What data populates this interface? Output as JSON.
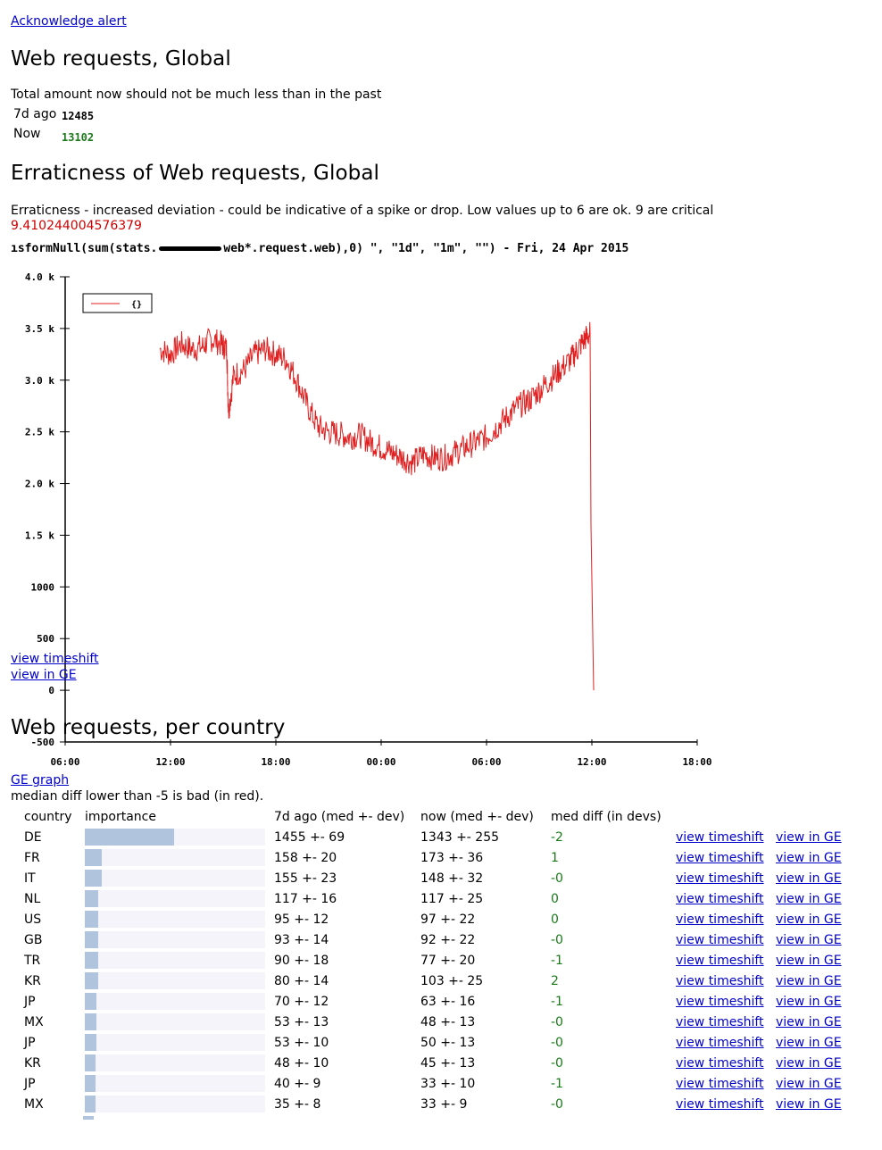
{
  "top_link": "Acknowledge alert",
  "section1": {
    "title": "Web requests, Global",
    "description": "Total amount now should not be much less than in the past",
    "rows": [
      {
        "label": "7d ago",
        "value": "12485"
      },
      {
        "label": "Now",
        "value": "13102"
      }
    ]
  },
  "section2": {
    "title": "Erraticness of Web requests, Global",
    "description": "Erraticness - increased deviation - could be indicative of a spike or drop. Low values up to 6 are ok. 9 are critical",
    "value": "9.410244004576379",
    "query_left": "ısformNull(sum(stats.",
    "query_right": "web*.request.web),0) \", \"1d\", \"1m\", \"\") - Fri, 24 Apr 2015",
    "links": [
      "view timeshift",
      "view in GE"
    ]
  },
  "chart_data": {
    "type": "line",
    "title": "",
    "xlabel": "",
    "ylabel": "",
    "legend": "{}",
    "legend_position": "top-left",
    "line_color": "#e02020",
    "ylim": [
      -500,
      4000
    ],
    "yticks": [
      {
        "value": 4000,
        "label": "4.0 k"
      },
      {
        "value": 3500,
        "label": "3.5 k"
      },
      {
        "value": 3000,
        "label": "3.0 k"
      },
      {
        "value": 2500,
        "label": "2.5 k"
      },
      {
        "value": 2000,
        "label": "2.0 k"
      },
      {
        "value": 1500,
        "label": "1.5 k"
      },
      {
        "value": 1000,
        "label": "1000"
      },
      {
        "value": 500,
        "label": "500"
      },
      {
        "value": 0,
        "label": "0"
      },
      {
        "value": -500,
        "label": "-500"
      }
    ],
    "xlim": [
      6,
      36
    ],
    "xticks": [
      {
        "value": 6,
        "label": "06:00"
      },
      {
        "value": 12,
        "label": "12:00"
      },
      {
        "value": 18,
        "label": "18:00"
      },
      {
        "value": 24,
        "label": "00:00"
      },
      {
        "value": 30,
        "label": "06:00"
      },
      {
        "value": 36,
        "label": "12:00"
      },
      {
        "value": 42,
        "label": "18:00"
      }
    ],
    "series": [
      {
        "x": [
          11.4,
          12.0,
          12.6,
          13.2,
          13.8,
          14.3,
          14.9,
          15.2,
          15.3,
          15.6,
          16.2,
          16.8,
          17.4,
          18.0,
          18.6,
          19.2,
          19.8,
          20.4,
          21.0,
          21.6,
          22.2,
          22.8,
          23.4,
          24.0,
          24.6,
          25.2,
          25.8,
          26.4,
          27.0,
          27.6,
          28.2,
          28.8,
          29.4,
          30.0,
          30.6,
          31.2,
          31.8,
          32.4,
          33.0,
          33.6,
          34.2,
          34.8,
          35.2,
          35.6,
          35.9,
          36.1
        ],
        "y": [
          3300,
          3250,
          3350,
          3300,
          3320,
          3400,
          3350,
          3300,
          2700,
          3050,
          3100,
          3250,
          3300,
          3250,
          3200,
          3000,
          2750,
          2550,
          2500,
          2480,
          2450,
          2470,
          2400,
          2350,
          2300,
          2250,
          2200,
          2280,
          2250,
          2250,
          2300,
          2350,
          2400,
          2450,
          2550,
          2650,
          2750,
          2800,
          2900,
          3000,
          3100,
          3200,
          3300,
          3400,
          3450,
          0
        ]
      }
    ]
  },
  "section3": {
    "title": "Web requests, per country",
    "link": "GE graph",
    "note": "median diff lower than -5 is bad (in red).",
    "headers": [
      "country",
      "importance",
      "7d ago (med +- dev)",
      "now (med +- dev)",
      "med diff (in devs)"
    ],
    "rows": [
      {
        "country": "DE",
        "importance": 1.0,
        "ago": "1455 +- 69",
        "now": "1343 +- 255",
        "diff": "-2"
      },
      {
        "country": "FR",
        "importance": 0.19,
        "ago": "158 +- 20",
        "now": "173 +- 36",
        "diff": "1"
      },
      {
        "country": "IT",
        "importance": 0.19,
        "ago": "155 +- 23",
        "now": "148 +- 32",
        "diff": "-0"
      },
      {
        "country": "NL",
        "importance": 0.15,
        "ago": "117 +- 16",
        "now": "117 +- 25",
        "diff": "0"
      },
      {
        "country": "US",
        "importance": 0.15,
        "ago": "95 +- 12",
        "now": "97 +- 22",
        "diff": "0"
      },
      {
        "country": "GB",
        "importance": 0.15,
        "ago": "93 +- 14",
        "now": "92 +- 22",
        "diff": "-0"
      },
      {
        "country": "TR",
        "importance": 0.15,
        "ago": "90 +- 18",
        "now": "77 +- 20",
        "diff": "-1"
      },
      {
        "country": "KR",
        "importance": 0.15,
        "ago": "80 +- 14",
        "now": "103 +- 25",
        "diff": "2"
      },
      {
        "country": "JP",
        "importance": 0.13,
        "ago": "70 +- 12",
        "now": "63 +- 16",
        "diff": "-1"
      },
      {
        "country": "MX",
        "importance": 0.13,
        "ago": "53 +- 13",
        "now": "48 +- 13",
        "diff": "-0"
      },
      {
        "country": "JP",
        "importance": 0.13,
        "ago": "53 +- 10",
        "now": "50 +- 13",
        "diff": "-0"
      },
      {
        "country": "KR",
        "importance": 0.12,
        "ago": "48 +- 10",
        "now": "45 +- 13",
        "diff": "-0"
      },
      {
        "country": "JP",
        "importance": 0.12,
        "ago": "40 +- 9",
        "now": "33 +- 10",
        "diff": "-1"
      },
      {
        "country": "MX",
        "importance": 0.12,
        "ago": "35 +- 8",
        "now": "33 +- 9",
        "diff": "-0"
      }
    ],
    "link_timeshift": "view timeshift",
    "link_ge": "view in GE"
  }
}
